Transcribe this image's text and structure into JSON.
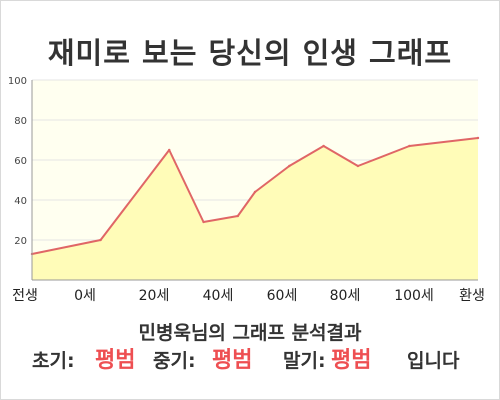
{
  "title": "재미로 보는 당신의 인생 그래프",
  "summary": "민병욱님의 그래프 분석결과",
  "results": {
    "early_label": "초기:",
    "early_value": "평범",
    "mid_label": "중기:",
    "mid_value": "평범",
    "late_label": "말기:",
    "late_value": "평범",
    "suffix": "입니다"
  },
  "colors": {
    "plot_bg": "#fffff0",
    "area_fill": "#fffcb8",
    "line": "#e06666",
    "highlight": "#ee4f52"
  },
  "chart_data": {
    "type": "area",
    "x_categories": [
      "전생",
      "0세",
      "20세",
      "40세",
      "60세",
      "80세",
      "100세",
      "환생"
    ],
    "x": [
      -20,
      0,
      20,
      30,
      40,
      45,
      55,
      65,
      75,
      90,
      110
    ],
    "y": [
      13,
      20,
      65,
      29,
      32,
      44,
      57,
      67,
      57,
      67,
      71
    ],
    "y_ticks": [
      20,
      40,
      60,
      80,
      100
    ],
    "ylim": [
      0,
      100
    ],
    "grid": true,
    "legend": "none"
  }
}
